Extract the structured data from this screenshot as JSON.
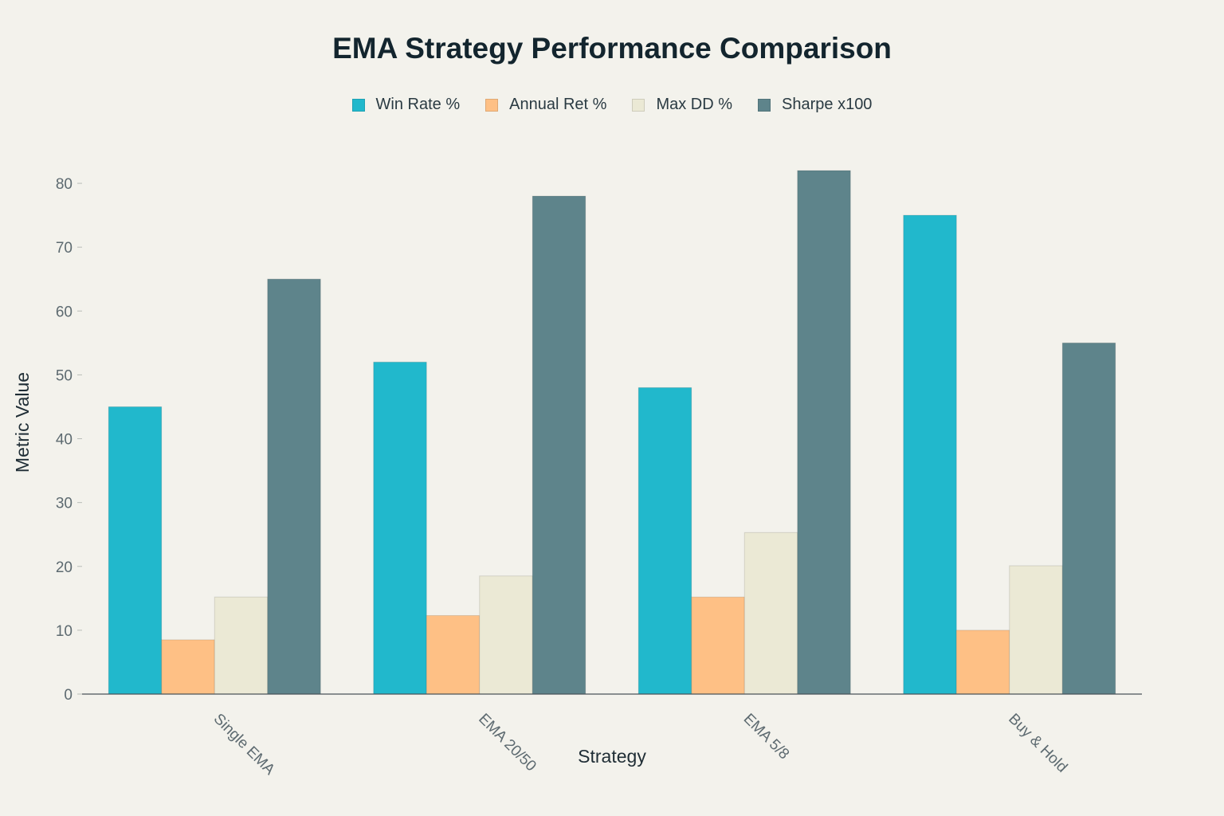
{
  "chart_data": {
    "type": "bar",
    "title": "EMA Strategy Performance Comparison",
    "xlabel": "Strategy",
    "ylabel": "Metric Value",
    "categories": [
      "Single EMA",
      "EMA 20/50",
      "EMA 5/8",
      "Buy & Hold"
    ],
    "series": [
      {
        "name": "Win Rate %",
        "color": "#21b8cc",
        "values": [
          45,
          52,
          48,
          75
        ]
      },
      {
        "name": "Annual Ret %",
        "color": "#fec085",
        "values": [
          8.5,
          12.3,
          15.2,
          10
        ]
      },
      {
        "name": "Max DD %",
        "color": "#ebe9d5",
        "values": [
          15.2,
          18.5,
          25.3,
          20.1
        ]
      },
      {
        "name": "Sharpe x100",
        "color": "#5e848b",
        "values": [
          65,
          78,
          82,
          55
        ]
      }
    ],
    "ylim": [
      0,
      85
    ],
    "yticks": [
      0,
      10,
      20,
      30,
      40,
      50,
      60,
      70,
      80
    ],
    "legend_position": "top-center",
    "grid": false
  }
}
